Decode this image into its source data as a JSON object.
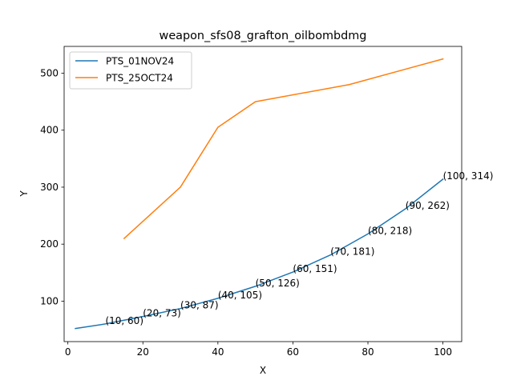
{
  "chart_data": {
    "type": "line",
    "title": "weapon_sfs08_grafton_oilbombdmg",
    "xlabel": "X",
    "ylabel": "Y",
    "xlim": [
      -1,
      105
    ],
    "ylim": [
      29,
      547
    ],
    "x_ticks": [
      0,
      20,
      40,
      60,
      80,
      100
    ],
    "y_ticks": [
      100,
      200,
      300,
      400,
      500
    ],
    "grid": false,
    "legend_position": "upper left",
    "series": [
      {
        "name": "PTS_01NOV24",
        "color": "#1f77b4",
        "x": [
          2,
          10,
          20,
          30,
          40,
          50,
          60,
          70,
          80,
          90,
          100
        ],
        "y": [
          52,
          60,
          73,
          87,
          105,
          126,
          151,
          181,
          218,
          262,
          314
        ]
      },
      {
        "name": "PTS_25OCT24",
        "color": "#ff7f0e",
        "x": [
          15,
          30,
          40,
          50,
          75,
          100
        ],
        "y": [
          210,
          300,
          405,
          450,
          480,
          525
        ]
      }
    ],
    "annotations": [
      {
        "x": 10,
        "y": 60,
        "text": "(10, 60)"
      },
      {
        "x": 20,
        "y": 73,
        "text": "(20, 73)"
      },
      {
        "x": 30,
        "y": 87,
        "text": "(30, 87)"
      },
      {
        "x": 40,
        "y": 105,
        "text": "(40, 105)"
      },
      {
        "x": 50,
        "y": 126,
        "text": "(50, 126)"
      },
      {
        "x": 60,
        "y": 151,
        "text": "(60, 151)"
      },
      {
        "x": 70,
        "y": 181,
        "text": "(70, 181)"
      },
      {
        "x": 80,
        "y": 218,
        "text": "(80, 218)"
      },
      {
        "x": 90,
        "y": 262,
        "text": "(90, 262)"
      },
      {
        "x": 100,
        "y": 314,
        "text": "(100, 314)"
      }
    ]
  }
}
